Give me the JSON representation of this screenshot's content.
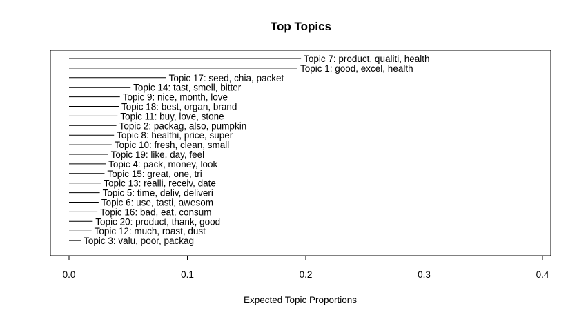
{
  "chart_data": {
    "type": "bar",
    "orientation": "horizontal",
    "title": "Top Topics",
    "xlabel": "Expected Topic Proportions",
    "ylabel": "",
    "xlim": [
      0,
      0.4
    ],
    "x_ticks": [
      "0.0",
      "0.1",
      "0.2",
      "0.3",
      "0.4"
    ],
    "grid": false,
    "categories": [
      "Topic 7: product, qualiti, health",
      "Topic 1: good, excel, health",
      "Topic 17: seed, chia, packet",
      "Topic 14: tast, smell, bitter",
      "Topic 9: nice, month, love",
      "Topic 18: best, organ, brand",
      "Topic 11: buy, love, stone",
      "Topic 2: packag, also, pumpkin",
      "Topic 8: healthi, price, super",
      "Topic 10: fresh, clean, small",
      "Topic 19: like, day, feel",
      "Topic 4: pack, money, look",
      "Topic 15: great, one, tri",
      "Topic 13: realli, receiv, date",
      "Topic 5: time, deliv, deliveri",
      "Topic 6: use, tasti, awesom",
      "Topic 16: bad, eat, consum",
      "Topic 20: product, thank, good",
      "Topic 12: much, roast, dust",
      "Topic 3: valu, poor, packag"
    ],
    "values": [
      0.196,
      0.193,
      0.082,
      0.052,
      0.043,
      0.042,
      0.041,
      0.04,
      0.038,
      0.036,
      0.033,
      0.031,
      0.03,
      0.027,
      0.026,
      0.025,
      0.024,
      0.02,
      0.019,
      0.01
    ]
  }
}
